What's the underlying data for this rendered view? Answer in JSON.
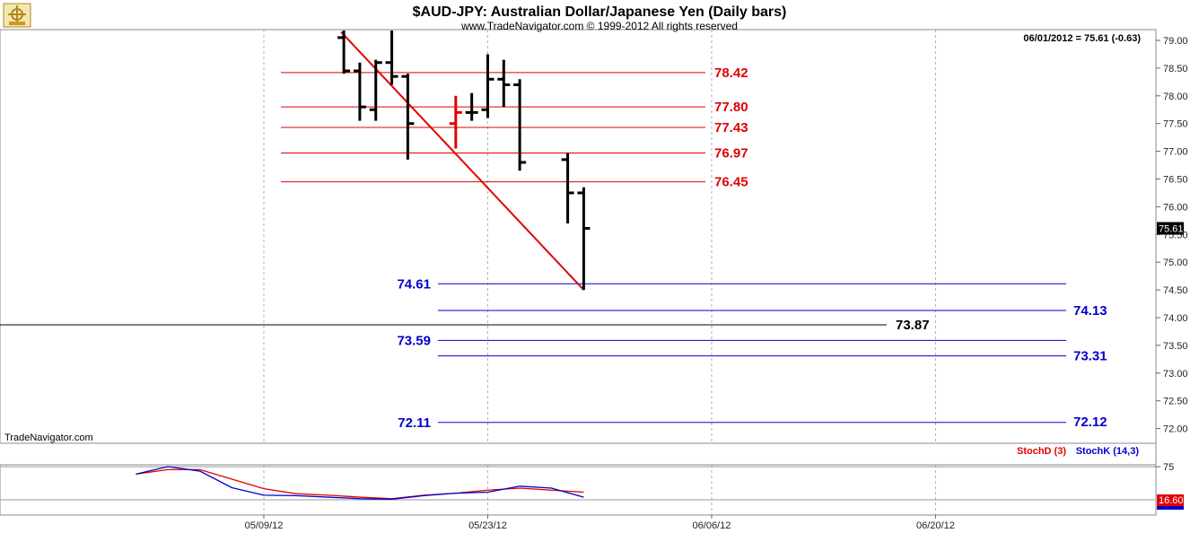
{
  "header": {
    "title": "$AUD-JPY:  Australian Dollar/Japanese Yen  (Daily bars)",
    "subtitle": "www.TradeNavigator.com © 1999-2012 All rights reserved",
    "readout": "06/01/2012 = 75.61 (-0.63)",
    "watermark": "TradeNavigator.com"
  },
  "colors": {
    "bars": "#000000",
    "highlight_bar": "#e00000",
    "resistance": "#e00000",
    "support": "#0000cc",
    "pivot": "#000000",
    "trendline": "#e00000",
    "stoch_d": "#e00000",
    "stoch_k": "#0000cc",
    "grid": "#b0b0b0"
  },
  "icons": {
    "logo": "tradenavigator-compass-icon"
  },
  "chart_data": [
    {
      "type": "ohlc",
      "title": "$AUD-JPY:  Australian Dollar/Japanese Yen  (Daily bars)",
      "grid": true,
      "y_axis_side": "right",
      "ylim": [
        71.8,
        79.1
      ],
      "y_ticks": [
        "79.00",
        "78.50",
        "78.00",
        "77.50",
        "77.00",
        "76.50",
        "76.00",
        "75.50",
        "75.00",
        "74.50",
        "74.00",
        "73.50",
        "73.00",
        "72.50",
        "72.00"
      ],
      "x_ticks": [
        "05/09/12",
        "05/23/12",
        "06/06/12",
        "06/20/12"
      ],
      "last_price_label": "75.61",
      "bars": [
        {
          "date": "05/14/12",
          "open": 79.05,
          "high": 79.2,
          "low": 78.4,
          "close": 78.45
        },
        {
          "date": "05/15/12",
          "open": 78.45,
          "high": 78.6,
          "low": 77.55,
          "close": 77.8
        },
        {
          "date": "05/16/12",
          "open": 77.75,
          "high": 78.65,
          "low": 77.55,
          "close": 78.6
        },
        {
          "date": "05/17/12",
          "open": 78.6,
          "high": 79.3,
          "low": 78.2,
          "close": 78.35
        },
        {
          "date": "05/18/12",
          "open": 78.35,
          "high": 78.4,
          "low": 76.85,
          "close": 77.5
        },
        {
          "date": "05/21/12",
          "open": 77.5,
          "high": 78.0,
          "low": 77.05,
          "close": 77.7,
          "highlight": true
        },
        {
          "date": "05/22/12",
          "open": 77.7,
          "high": 78.05,
          "low": 77.55,
          "close": 77.7
        },
        {
          "date": "05/23/12",
          "open": 77.75,
          "high": 78.75,
          "low": 77.6,
          "close": 78.3
        },
        {
          "date": "05/24/12",
          "open": 78.3,
          "high": 78.65,
          "low": 77.8,
          "close": 78.2
        },
        {
          "date": "05/25/12",
          "open": 78.2,
          "high": 78.3,
          "low": 76.65,
          "close": 76.8
        },
        {
          "date": "05/28/12",
          "open": 76.85,
          "high": 76.97,
          "low": 75.7,
          "close": 76.25
        },
        {
          "date": "05/29/12",
          "open": 76.25,
          "high": 76.35,
          "low": 74.5,
          "close": 75.61
        }
      ],
      "trendline": [
        {
          "date": "05/14/12",
          "value": 79.15
        },
        {
          "date": "05/29/12",
          "value": 74.5
        }
      ],
      "resistance_levels": [
        {
          "value": 78.42,
          "label": "78.42"
        },
        {
          "value": 77.8,
          "label": "77.80"
        },
        {
          "value": 77.43,
          "label": "77.43"
        },
        {
          "value": 76.97,
          "label": "76.97"
        },
        {
          "value": 76.45,
          "label": "76.45"
        }
      ],
      "support_levels": [
        {
          "value": 74.61,
          "label": "74.61",
          "label_side": "left"
        },
        {
          "value": 74.13,
          "label": "74.13",
          "label_side": "right"
        },
        {
          "value": 73.59,
          "label": "73.59",
          "label_side": "left"
        },
        {
          "value": 73.31,
          "label": "73.31",
          "label_side": "right"
        },
        {
          "value": 72.11,
          "label": "72.11",
          "label_side": "left"
        },
        {
          "value": 72.12,
          "label": "72.12",
          "label_side": "right"
        }
      ],
      "pivot_level": {
        "value": 73.87,
        "label": "73.87"
      }
    },
    {
      "type": "line",
      "y_ticks": [
        "75"
      ],
      "ylim": [
        -5,
        110
      ],
      "last_value_label": "16.60",
      "series": [
        {
          "name": "StochD (3)",
          "color": "#e00000",
          "x": [
            "05/01/12",
            "05/03/12",
            "05/05/12",
            "05/07/12",
            "05/09/12",
            "05/11/12",
            "05/13/12",
            "05/15/12",
            "05/17/12",
            "05/19/12",
            "05/21/12",
            "05/23/12",
            "05/25/12",
            "05/27/12",
            "05/29/12"
          ],
          "values": [
            62,
            71,
            71,
            52,
            33,
            23,
            20,
            16,
            13,
            20,
            24,
            30,
            34,
            30,
            26
          ]
        },
        {
          "name": "StochK (14,3)",
          "color": "#0000cc",
          "x": [
            "05/01/12",
            "05/03/12",
            "05/05/12",
            "05/07/12",
            "05/09/12",
            "05/11/12",
            "05/13/12",
            "05/15/12",
            "05/17/12",
            "05/19/12",
            "05/21/12",
            "05/23/12",
            "05/25/12",
            "05/27/12",
            "05/29/12"
          ],
          "values": [
            62,
            77,
            68,
            35,
            20,
            19,
            16,
            13,
            12,
            19,
            24,
            26,
            38,
            34,
            16
          ]
        }
      ]
    }
  ]
}
